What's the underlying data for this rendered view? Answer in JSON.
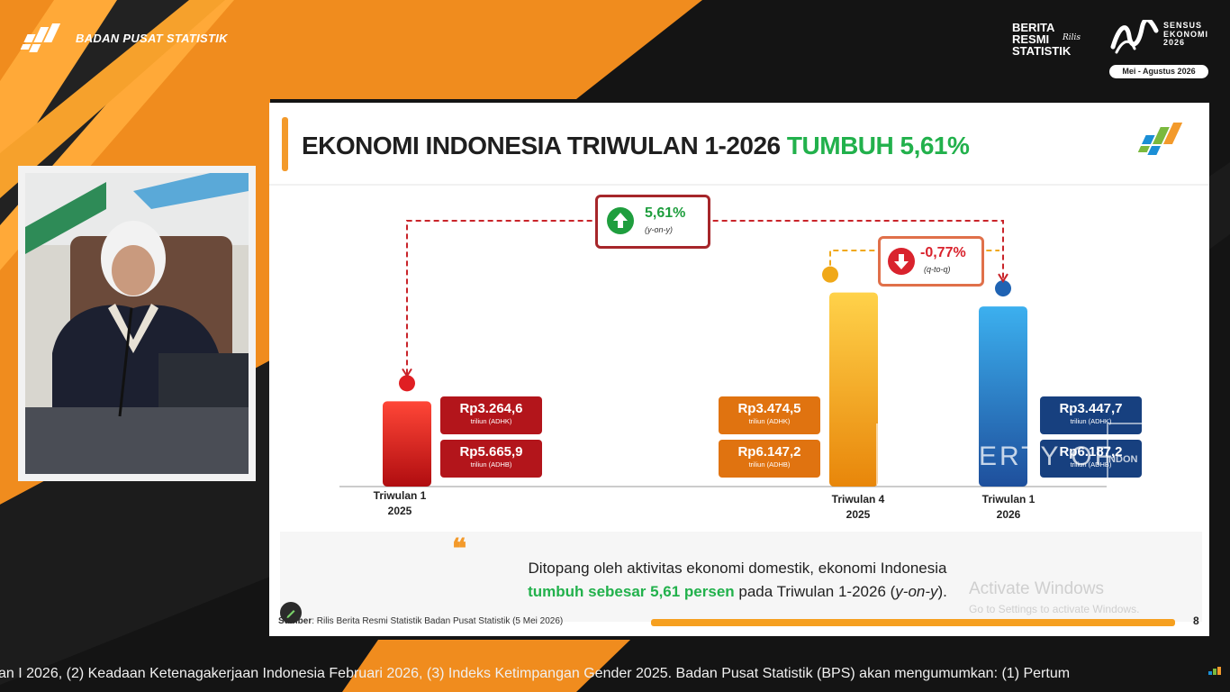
{
  "header": {
    "brand": "BADAN PUSAT STATISTIK",
    "brs": [
      "BERITA",
      "RESMI",
      "STATISTIK"
    ],
    "brs_script": "Rilis",
    "sensus_lines": [
      "SENSUS",
      "EKONOMI",
      "2026"
    ],
    "sensus_period": "Mei - Agustus 2026"
  },
  "slide": {
    "title_main": "EKONOMI INDONESIA TRIWULAN 1-2026",
    "title_highlight": "TUMBUH 5,61%",
    "yoy": {
      "value": "5,61%",
      "label": "(y-on-y)",
      "direction": "up",
      "color": "#1f9e3e"
    },
    "qtq": {
      "value": "-0,77%",
      "label": "(q-to-q)",
      "direction": "down",
      "color": "#d9232d"
    },
    "quote_part1": "Ditopang oleh aktivitas ekonomi domestik, ekonomi Indonesia",
    "quote_green": "tumbuh sebesar 5,61 persen",
    "quote_part2": " pada Triwulan 1-2026 (",
    "quote_italic": "y-on-y",
    "quote_end": ").",
    "source_bold": "Sumber",
    "source_text": ": Rilis Berita Resmi Statistik Badan Pusat Statistik (5 Mei 2026)",
    "page_number": "8"
  },
  "chart_data": {
    "type": "bar",
    "categories": [
      "Triwulan 1 2025",
      "Triwulan 4 2025",
      "Triwulan 1 2026"
    ],
    "category_lines": [
      [
        "Triwulan 1",
        "2025"
      ],
      [
        "Triwulan 4",
        "2025"
      ],
      [
        "Triwulan 1",
        "2026"
      ]
    ],
    "series": [
      {
        "values": [
          3264.6,
          3474.5,
          3447.7
        ],
        "labels": [
          "Rp3.264,6",
          "Rp3.474,5",
          "Rp3.447,7"
        ],
        "unit": "triliun (ADHK)"
      },
      {
        "values": [
          5665.9,
          6147.2,
          6187.2
        ],
        "labels": [
          "Rp5.665,9",
          "Rp6.147,2",
          "Rp6.187,2"
        ],
        "unit": "triliun (ADHB)"
      }
    ],
    "colors": [
      [
        "#b00d10",
        "#ff4637"
      ],
      [
        "#e8860a",
        "#ffd24a"
      ],
      [
        "#1e4f9c",
        "#3cb0ef"
      ]
    ],
    "box_colors": [
      "#b3151b",
      "#e07310",
      "#17407f"
    ],
    "growth": {
      "yoy": 5.61,
      "qtq": -0.77
    }
  },
  "watermark": {
    "text": "PROPERTY OF",
    "logo_text": "INDON"
  },
  "activate": {
    "title": "Activate Windows",
    "subtitle": "Go to Settings to activate Windows."
  },
  "ticker": {
    "text": "an I 2026, (2) Keadaan Ketenagakerjaan Indonesia Februari 2026, (3) Indeks Ketimpangan Gender 2025. Badan Pusat Statistik (BPS) akan mengumumkan: (1) Pertum"
  }
}
